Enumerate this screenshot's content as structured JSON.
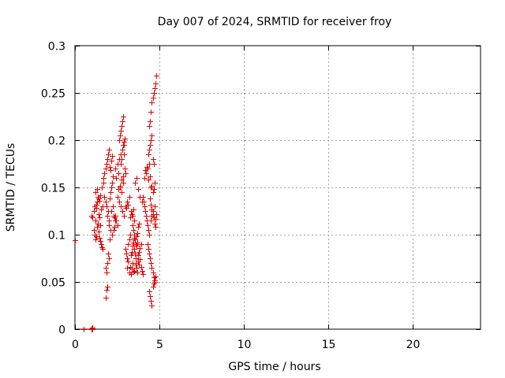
{
  "chart_data": {
    "type": "scatter",
    "title": "Day 007 of 2024, SRMTID for receiver froy",
    "xlabel": "GPS time / hours",
    "ylabel": "SRMTID / TECUs",
    "xlim": [
      0,
      24
    ],
    "ylim": [
      0,
      0.3
    ],
    "xticks": [
      0,
      5,
      10,
      15,
      20
    ],
    "xtick_labels": [
      "0",
      "5",
      "10",
      "15",
      "20"
    ],
    "yticks": [
      0,
      0.05,
      0.1,
      0.15,
      0.2,
      0.25,
      0.3
    ],
    "ytick_labels": [
      "0",
      "0.05",
      "0.1",
      "0.15",
      "0.2",
      "0.25",
      "0.3"
    ],
    "grid": true,
    "marker": "+",
    "color": "#e00000",
    "series": [
      {
        "name": "SRMTID",
        "x": [
          0.0,
          0.5,
          1.0,
          1.0,
          1.02,
          1.05,
          1.0,
          1.05,
          1.1,
          1.15,
          1.2,
          1.25,
          1.3,
          1.35,
          1.4,
          1.45,
          1.5,
          1.55,
          1.1,
          1.15,
          1.2,
          1.25,
          1.3,
          1.35,
          1.4,
          1.45,
          1.5,
          1.55,
          1.6,
          1.65,
          1.2,
          1.3,
          1.4,
          1.5,
          1.6,
          1.7,
          1.25,
          1.45,
          1.65,
          1.7,
          1.75,
          1.8,
          1.85,
          1.9,
          1.95,
          2.0,
          2.05,
          2.1,
          2.15,
          2.2,
          2.25,
          1.75,
          1.8,
          1.85,
          1.9,
          1.95,
          2.0,
          2.05,
          2.1,
          2.15,
          2.2,
          1.8,
          1.85,
          1.9,
          1.85,
          1.8,
          1.9,
          1.95,
          2.0,
          2.0,
          2.1,
          2.2,
          2.3,
          2.4,
          2.05,
          2.15,
          2.25,
          2.35,
          2.4,
          2.5,
          2.6,
          2.7,
          2.8,
          2.9,
          2.45,
          2.55,
          2.65,
          2.75,
          2.85,
          2.5,
          2.6,
          2.7,
          2.8,
          2.9,
          2.55,
          2.65,
          2.75,
          2.85,
          2.6,
          2.65,
          2.7,
          2.75,
          2.8,
          2.85,
          2.9,
          2.95,
          2.7,
          2.75,
          2.8,
          2.85,
          2.9,
          2.95,
          3.0,
          2.4,
          2.5,
          2.3,
          2.2,
          2.35,
          2.45,
          3.0,
          3.05,
          3.1,
          3.15,
          3.2,
          3.25,
          3.3,
          3.35,
          3.4,
          3.45,
          3.5,
          3.0,
          3.1,
          3.2,
          3.3,
          3.4,
          3.5,
          3.05,
          3.15,
          3.25,
          3.35,
          3.45,
          3.1,
          3.2,
          3.3,
          3.4,
          3.5,
          3.6,
          3.15,
          3.25,
          3.35,
          3.45,
          3.4,
          3.45,
          3.5,
          3.55,
          3.6,
          3.65,
          3.7,
          3.75,
          3.8,
          3.5,
          3.55,
          3.6,
          3.65,
          3.7,
          3.75,
          3.8,
          3.85,
          3.9,
          3.6,
          3.65,
          3.7,
          3.75,
          3.8,
          3.85,
          3.9,
          3.95,
          4.0,
          3.55,
          3.65,
          3.75,
          3.85,
          3.95,
          4.0,
          4.05,
          4.1,
          4.15,
          4.2,
          4.25,
          4.3,
          4.35,
          4.4,
          4.45,
          4.5,
          4.55,
          4.6,
          4.65,
          4.7,
          4.75,
          4.1,
          4.2,
          4.3,
          4.4,
          4.5,
          4.6,
          4.7,
          4.15,
          4.25,
          4.35,
          4.45,
          4.55,
          4.65,
          4.3,
          4.35,
          4.4,
          4.45,
          4.5,
          4.55,
          4.6,
          4.65,
          4.7,
          4.4,
          4.45,
          4.5,
          4.55,
          4.6,
          4.65,
          4.7,
          4.75,
          4.35,
          4.4,
          4.45,
          4.5,
          4.55,
          4.6,
          4.65,
          4.4,
          4.45,
          4.5,
          4.55,
          4.6,
          4.65,
          4.7,
          4.75,
          4.8,
          4.5,
          4.55,
          4.6,
          4.7,
          4.75,
          4.8
        ],
        "y": [
          0.094,
          0.0,
          0.0,
          0.001,
          0.002,
          0.0,
          0.12,
          0.118,
          0.125,
          0.13,
          0.115,
          0.128,
          0.135,
          0.14,
          0.122,
          0.118,
          0.11,
          0.127,
          0.105,
          0.1,
          0.095,
          0.098,
          0.108,
          0.112,
          0.103,
          0.097,
          0.093,
          0.09,
          0.087,
          0.085,
          0.145,
          0.148,
          0.138,
          0.142,
          0.15,
          0.155,
          0.132,
          0.136,
          0.13,
          0.16,
          0.165,
          0.17,
          0.175,
          0.18,
          0.185,
          0.19,
          0.172,
          0.168,
          0.178,
          0.183,
          0.162,
          0.14,
          0.135,
          0.13,
          0.12,
          0.125,
          0.115,
          0.138,
          0.145,
          0.15,
          0.155,
          0.065,
          0.06,
          0.045,
          0.042,
          0.033,
          0.07,
          0.08,
          0.075,
          0.11,
          0.105,
          0.1,
          0.12,
          0.115,
          0.095,
          0.125,
          0.13,
          0.118,
          0.17,
          0.175,
          0.18,
          0.185,
          0.19,
          0.195,
          0.16,
          0.165,
          0.15,
          0.145,
          0.155,
          0.14,
          0.135,
          0.13,
          0.125,
          0.12,
          0.148,
          0.152,
          0.158,
          0.162,
          0.2,
          0.205,
          0.21,
          0.215,
          0.22,
          0.225,
          0.198,
          0.202,
          0.175,
          0.18,
          0.19,
          0.195,
          0.185,
          0.17,
          0.165,
          0.12,
          0.11,
          0.105,
          0.1,
          0.108,
          0.115,
          0.085,
          0.08,
          0.075,
          0.09,
          0.095,
          0.1,
          0.078,
          0.082,
          0.088,
          0.092,
          0.097,
          0.13,
          0.135,
          0.14,
          0.125,
          0.12,
          0.115,
          0.128,
          0.132,
          0.118,
          0.122,
          0.127,
          0.065,
          0.06,
          0.058,
          0.07,
          0.062,
          0.068,
          0.072,
          0.066,
          0.064,
          0.061,
          0.11,
          0.105,
          0.1,
          0.095,
          0.09,
          0.098,
          0.102,
          0.108,
          0.112,
          0.085,
          0.08,
          0.075,
          0.088,
          0.092,
          0.078,
          0.082,
          0.086,
          0.09,
          0.07,
          0.065,
          0.06,
          0.072,
          0.068,
          0.074,
          0.066,
          0.062,
          0.058,
          0.155,
          0.16,
          0.148,
          0.14,
          0.135,
          0.14,
          0.135,
          0.13,
          0.125,
          0.12,
          0.115,
          0.11,
          0.105,
          0.1,
          0.138,
          0.132,
          0.127,
          0.122,
          0.118,
          0.112,
          0.108,
          0.16,
          0.165,
          0.17,
          0.175,
          0.15,
          0.145,
          0.155,
          0.168,
          0.172,
          0.158,
          0.162,
          0.152,
          0.148,
          0.09,
          0.085,
          0.08,
          0.075,
          0.07,
          0.065,
          0.06,
          0.055,
          0.05,
          0.04,
          0.035,
          0.03,
          0.025,
          0.045,
          0.048,
          0.052,
          0.056,
          0.185,
          0.19,
          0.195,
          0.2,
          0.205,
          0.18,
          0.175,
          0.215,
          0.22,
          0.23,
          0.24,
          0.245,
          0.25,
          0.255,
          0.26,
          0.268,
          0.115,
          0.12,
          0.125,
          0.13,
          0.117,
          0.122
        ]
      }
    ]
  }
}
